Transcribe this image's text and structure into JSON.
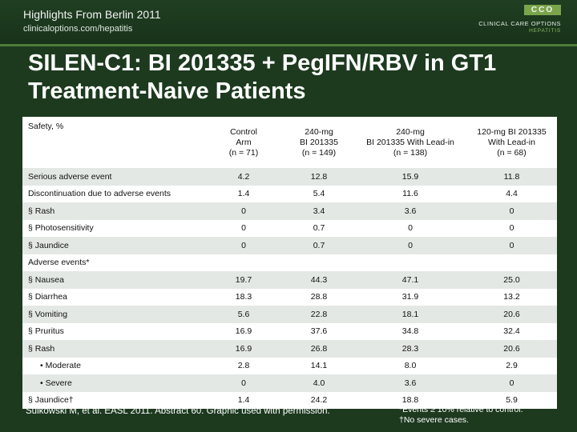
{
  "header": {
    "title": "Highlights From Berlin 2011",
    "subtitle": "clinicaloptions.com/hepatitis"
  },
  "logo": {
    "mark": "CCO",
    "name": "CLINICAL CARE OPTIONS",
    "area": "HEPATITIS",
    "icon": "cco-logo"
  },
  "slide": {
    "title": "SILEN-C1: BI 201335 + PegIFN/RBV in GT1 Treatment-Naive Patients"
  },
  "table": {
    "corner_label": "Safety, %",
    "columns": [
      [
        "Control",
        "Arm",
        "(n = 71)"
      ],
      [
        "240-mg",
        "BI 201335",
        "(n = 149)"
      ],
      [
        "240-mg",
        "BI 201335 With Lead-in",
        "(n = 138)"
      ],
      [
        "120-mg BI 201335",
        "With Lead-in",
        "(n = 68)"
      ]
    ],
    "rows": [
      {
        "label": "Serious adverse event",
        "indent": 0,
        "values": [
          "4.2",
          "12.8",
          "15.9",
          "11.8"
        ]
      },
      {
        "label": "Discontinuation due to adverse events",
        "indent": 0,
        "values": [
          "1.4",
          "5.4",
          "11.6",
          "4.4"
        ]
      },
      {
        "label": "§ Rash",
        "indent": 0,
        "values": [
          "0",
          "3.4",
          "3.6",
          "0"
        ]
      },
      {
        "label": "§ Photosensitivity",
        "indent": 0,
        "values": [
          "0",
          "0.7",
          "0",
          "0"
        ]
      },
      {
        "label": "§ Jaundice",
        "indent": 0,
        "values": [
          "0",
          "0.7",
          "0",
          "0"
        ]
      },
      {
        "label": "Adverse events*",
        "section": true
      },
      {
        "label": "§ Nausea",
        "indent": 0,
        "values": [
          "19.7",
          "44.3",
          "47.1",
          "25.0"
        ]
      },
      {
        "label": "§ Diarrhea",
        "indent": 0,
        "values": [
          "18.3",
          "28.8",
          "31.9",
          "13.2"
        ]
      },
      {
        "label": "§ Vomiting",
        "indent": 0,
        "values": [
          "5.6",
          "22.8",
          "18.1",
          "20.6"
        ]
      },
      {
        "label": "§ Pruritus",
        "indent": 0,
        "values": [
          "16.9",
          "37.6",
          "34.8",
          "32.4"
        ]
      },
      {
        "label": "§ Rash",
        "indent": 0,
        "values": [
          "16.9",
          "26.8",
          "28.3",
          "20.6"
        ]
      },
      {
        "label": "• Moderate",
        "indent": 1,
        "values": [
          "2.8",
          "14.1",
          "8.0",
          "2.9"
        ]
      },
      {
        "label": "• Severe",
        "indent": 1,
        "values": [
          "0",
          "4.0",
          "3.6",
          "0"
        ]
      },
      {
        "label": "§ Jaundice†",
        "indent": 0,
        "values": [
          "1.4",
          "24.2",
          "18.8",
          "5.9"
        ]
      }
    ],
    "row_colors": [
      "#e4e8e4",
      "#ffffff"
    ]
  },
  "footer": {
    "citation": "Sulkowski M, et al. EASL 2011. Abstract 60. Graphic used with permission.",
    "note1": "*Events ≥ 10% relative to control.",
    "note2": "†No severe cases."
  }
}
